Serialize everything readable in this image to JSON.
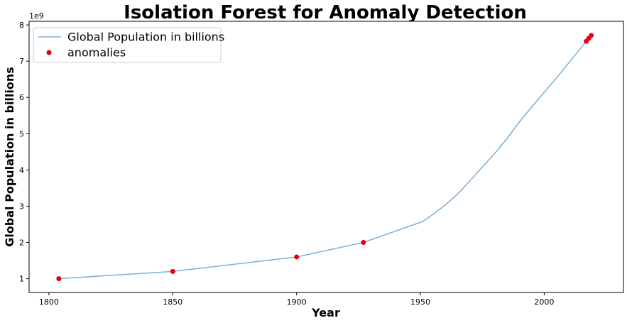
{
  "chart_data": {
    "type": "line",
    "title": "Isolation Forest for Anomaly Detection",
    "xlabel": "Year",
    "ylabel": "Global Population in billions",
    "y_offset_label": "1e9",
    "xlim": [
      1792,
      2032
    ],
    "ylim": [
      0.62,
      8.1
    ],
    "x_ticks": [
      1800,
      1850,
      1900,
      1950,
      2000
    ],
    "x_tick_labels": [
      "1800",
      "1850",
      "1900",
      "1950",
      "2000"
    ],
    "y_ticks": [
      1,
      2,
      3,
      4,
      5,
      6,
      7,
      8
    ],
    "y_tick_labels": [
      "1",
      "2",
      "3",
      "4",
      "5",
      "6",
      "7",
      "8"
    ],
    "grid": false,
    "legend_position": "top-left",
    "series": [
      {
        "name": "Global Population in billions",
        "type": "line",
        "color": "#7aafd6",
        "x": [
          1804,
          1850,
          1900,
          1927,
          1951,
          1955,
          1960,
          1965,
          1970,
          1975,
          1980,
          1985,
          1990,
          1995,
          2000,
          2005,
          2010,
          2015,
          2017,
          2018,
          2019,
          2020
        ],
        "y": [
          1.0,
          1.2,
          1.6,
          2.0,
          2.58,
          2.77,
          3.03,
          3.33,
          3.7,
          4.08,
          4.45,
          4.87,
          5.33,
          5.74,
          6.14,
          6.54,
          6.96,
          7.38,
          7.55,
          7.63,
          7.71,
          7.72
        ]
      },
      {
        "name": "anomalies",
        "type": "scatter",
        "color": "#e3000f",
        "x": [
          1804,
          1850,
          1900,
          1927,
          2017,
          2018,
          2019
        ],
        "y": [
          1.0,
          1.2,
          1.6,
          2.0,
          7.55,
          7.63,
          7.71
        ]
      }
    ]
  }
}
